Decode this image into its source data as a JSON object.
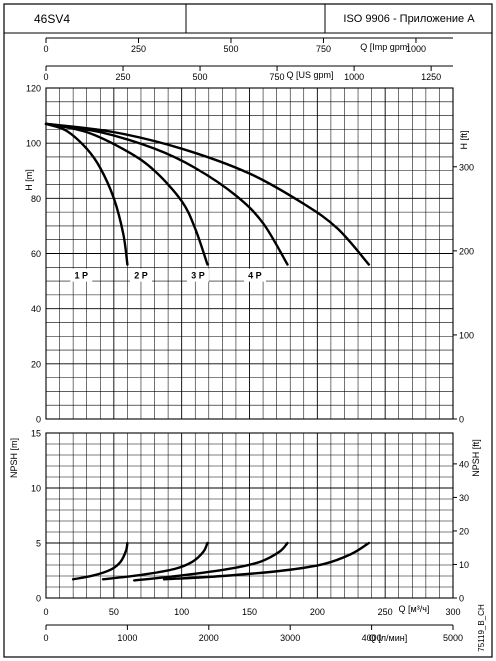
{
  "header": {
    "model": "46SV4",
    "middle": "",
    "standard": "ISO 9906 - Приложение A"
  },
  "footer_code": "75119_B_CH",
  "axes": {
    "q_imp_label": "Q [Imp gpm]",
    "q_imp_ticks": [
      "0",
      "250",
      "500",
      "750",
      "1000"
    ],
    "q_imp_values": [
      0,
      250,
      500,
      750,
      1000
    ],
    "q_us_label": "Q [US gpm]",
    "q_us_ticks": [
      "0",
      "250",
      "500",
      "750",
      "1000",
      "1250"
    ],
    "q_us_values": [
      0,
      250,
      500,
      750,
      1000,
      1250
    ],
    "h_m_label": "H [m]",
    "h_m_ticks": [
      "0",
      "20",
      "40",
      "60",
      "80",
      "100",
      "120"
    ],
    "h_m_values": [
      0,
      20,
      40,
      60,
      80,
      100,
      120
    ],
    "h_ft_label": "H [ft]",
    "h_ft_ticks": [
      "0",
      "100",
      "200",
      "300"
    ],
    "h_ft_values": [
      0,
      100,
      200,
      300
    ],
    "npsh_m_label": "NPSH [m]",
    "npsh_m_ticks": [
      "0",
      "5",
      "10",
      "15"
    ],
    "npsh_m_values": [
      0,
      5,
      10,
      15
    ],
    "npsh_ft_label": "NPSH [ft]",
    "npsh_ft_ticks": [
      "0",
      "10",
      "20",
      "30",
      "40"
    ],
    "npsh_ft_values": [
      0,
      10,
      20,
      30,
      40
    ],
    "q_m3h_label": "Q [м³/ч]",
    "q_m3h_ticks": [
      "0",
      "50",
      "100",
      "150",
      "200",
      "250",
      "300"
    ],
    "q_m3h_values": [
      0,
      50,
      100,
      150,
      200,
      250,
      300
    ],
    "q_lmin_label": "Q [л/мин]",
    "q_lmin_ticks": [
      "0",
      "1000",
      "2000",
      "3000",
      "4000",
      "5000"
    ],
    "q_lmin_values": [
      0,
      1000,
      2000,
      3000,
      4000,
      5000
    ]
  },
  "chart_data": [
    {
      "type": "line",
      "title": "",
      "xlabel": "Q [м³/ч]",
      "ylabel": "H [m]",
      "xlim": [
        0,
        300
      ],
      "ylim": [
        0,
        120
      ],
      "series": [
        {
          "name": "1 P",
          "x": [
            0,
            15,
            30,
            40,
            50,
            57,
            60
          ],
          "y": [
            107,
            104.5,
            98,
            91,
            80,
            67,
            56
          ]
        },
        {
          "name": "2 P",
          "x": [
            0,
            30,
            60,
            80,
            100,
            110,
            119
          ],
          "y": [
            107,
            104,
            97,
            90,
            79,
            69,
            56
          ]
        },
        {
          "name": "3 P",
          "x": [
            0,
            40,
            80,
            110,
            140,
            160,
            178
          ],
          "y": [
            107,
            104,
            98,
            91,
            81,
            71,
            56
          ]
        },
        {
          "name": "4 P",
          "x": [
            0,
            50,
            100,
            150,
            190,
            215,
            238
          ],
          "y": [
            107,
            104,
            98,
            89,
            78,
            69,
            56
          ]
        }
      ]
    },
    {
      "type": "line",
      "title": "",
      "xlabel": "Q [м³/ч]",
      "ylabel": "NPSH [m]",
      "xlim": [
        0,
        300
      ],
      "ylim": [
        0,
        15
      ],
      "series": [
        {
          "x": [
            20,
            35,
            48,
            55,
            59,
            60
          ],
          "y": [
            1.7,
            2.05,
            2.6,
            3.3,
            4.3,
            5.0
          ]
        },
        {
          "x": [
            42,
            70,
            95,
            108,
            116,
            119
          ],
          "y": [
            1.7,
            2.1,
            2.65,
            3.3,
            4.2,
            5.0
          ]
        },
        {
          "x": [
            65,
            100,
            135,
            158,
            172,
            178
          ],
          "y": [
            1.6,
            2.05,
            2.65,
            3.3,
            4.2,
            5.0
          ]
        },
        {
          "x": [
            87,
            130,
            175,
            205,
            225,
            238
          ],
          "y": [
            1.7,
            2.0,
            2.5,
            3.1,
            4.0,
            5.0
          ]
        }
      ]
    }
  ]
}
